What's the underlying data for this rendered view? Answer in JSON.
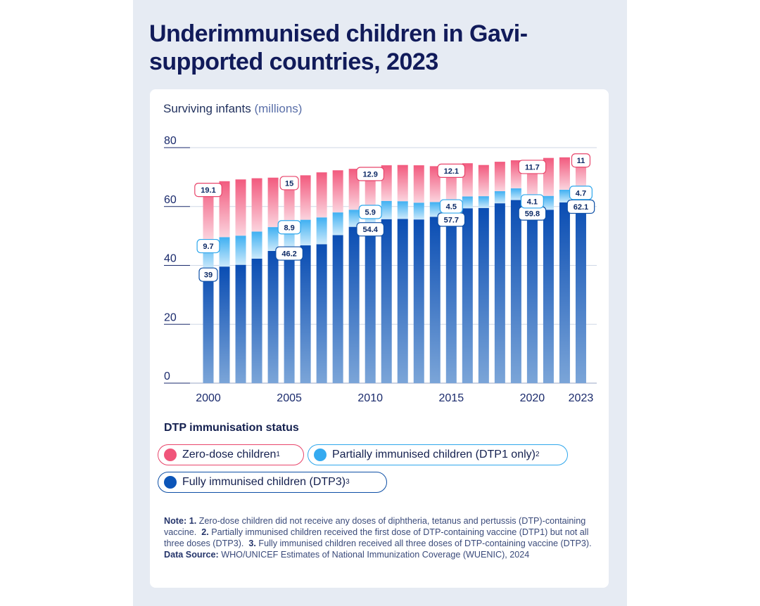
{
  "title": "Underimmunised children in Gavi-supported countries, 2023",
  "colors": {
    "zero": "#f0557a",
    "partial": "#35aaf0",
    "full": "#0c55b8",
    "panel": "#e6ebf3"
  },
  "chart_data": {
    "type": "bar",
    "stacked": true,
    "ylabel": "Surviving infants",
    "ylabel_unit": "(millions)",
    "ylim": [
      0,
      80
    ],
    "yticks": [
      0,
      20,
      40,
      60,
      80
    ],
    "xtick_labels": [
      "2000",
      "2005",
      "2010",
      "2015",
      "2020",
      "2023"
    ],
    "categories": [
      "2000",
      "2001",
      "2002",
      "2003",
      "2004",
      "2005",
      "2006",
      "2007",
      "2008",
      "2009",
      "2010",
      "2011",
      "2012",
      "2013",
      "2014",
      "2015",
      "2016",
      "2017",
      "2018",
      "2019",
      "2020",
      "2021",
      "2022",
      "2023"
    ],
    "series": [
      {
        "name": "Fully immunised children (DTP3)",
        "key": "full",
        "values": [
          39,
          39.6,
          40.2,
          42.3,
          44.9,
          46.2,
          46.8,
          47.2,
          50.3,
          53.1,
          54.4,
          55.7,
          55.8,
          55.6,
          56.5,
          57.7,
          59.4,
          59.5,
          61.1,
          62.2,
          59.8,
          58.9,
          61.4,
          62.1
        ]
      },
      {
        "name": "Partially immunised children (DTP1 only)",
        "key": "partial",
        "values": [
          9.7,
          10,
          9.9,
          9.2,
          8.1,
          8.9,
          8.7,
          9.1,
          7.7,
          5.8,
          5.9,
          6.2,
          6.0,
          5.7,
          5.0,
          4.5,
          4.0,
          4.0,
          4.1,
          4.0,
          4.1,
          4.7,
          4.3,
          4.7
        ]
      },
      {
        "name": "Zero-dose children",
        "key": "zero",
        "values": [
          19.1,
          19.0,
          19.1,
          18.1,
          16.8,
          15,
          15.1,
          15.3,
          14.3,
          13.9,
          12.9,
          12.1,
          12.3,
          12.7,
          12.2,
          12.1,
          11.3,
          10.6,
          10.0,
          9.5,
          11.7,
          12.9,
          11.0,
          11
        ]
      }
    ],
    "annotations": [
      {
        "index": 0,
        "full": "39",
        "partial": "9.7",
        "zero": "19.1"
      },
      {
        "index": 5,
        "full": "46.2",
        "partial": "8.9",
        "zero": "15"
      },
      {
        "index": 10,
        "full": "54.4",
        "partial": "5.9",
        "zero": "12.9"
      },
      {
        "index": 15,
        "full": "57.7",
        "partial": "4.5",
        "zero": "12.1"
      },
      {
        "index": 20,
        "full": "59.8",
        "partial": "4.1",
        "zero": "11.7"
      },
      {
        "index": 23,
        "full": "62.1",
        "partial": "4.7",
        "zero": "11"
      }
    ]
  },
  "legend": {
    "heading": "DTP immunisation status",
    "zero": {
      "label": "Zero-dose children",
      "sup": "1"
    },
    "partial": {
      "label": "Partially immunised children (DTP1 only)",
      "sup": "2"
    },
    "full": {
      "label": "Fully immunised children (DTP3)",
      "sup": "3"
    }
  },
  "notes": {
    "note_label": "Note:",
    "n1_num": "1.",
    "n1_text": "Zero-dose children did not receive any doses of diphtheria, tetanus and pertussis (DTP)-containing vaccine.",
    "n2_num": "2.",
    "n2_text": "Partially immunised children received the first dose of DTP-containing vaccine (DTP1) but not all three doses (DTP3).",
    "n3_num": "3.",
    "n3_text": "Fully immunised children received all three doses of DTP-containing vaccine (DTP3).",
    "source_label": "Data Source:",
    "source_text": "WHO/UNICEF Estimates of National Immunization Coverage (WUENIC), 2024"
  }
}
